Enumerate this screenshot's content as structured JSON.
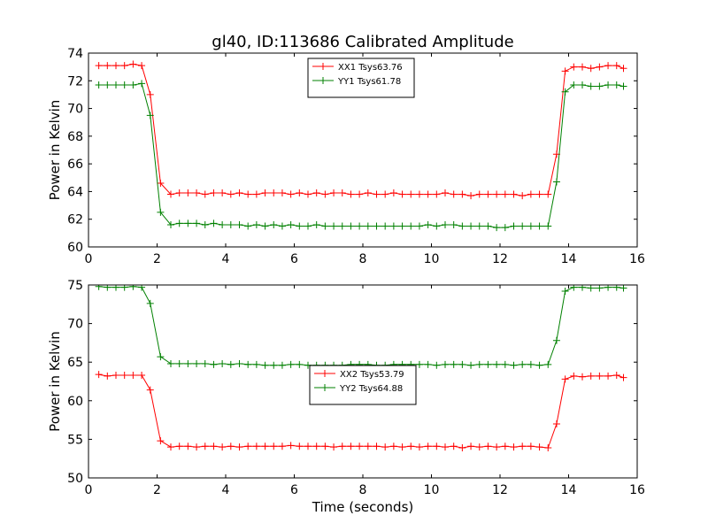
{
  "figure": {
    "title": "gl40, ID:113686 Calibrated Amplitude",
    "xlabel": "Time (seconds)"
  },
  "chart_data": [
    {
      "type": "line",
      "title": "gl40, ID:113686 Calibrated Amplitude",
      "xlabel": "",
      "ylabel": "Power in Kelvin",
      "xlim": [
        0,
        16
      ],
      "ylim": [
        60,
        74
      ],
      "xticks": [
        0,
        2,
        4,
        6,
        8,
        10,
        12,
        14,
        16
      ],
      "yticks": [
        60,
        62,
        64,
        66,
        68,
        70,
        72,
        74
      ],
      "grid": false,
      "legend_position": "top-center",
      "x": [
        0.3,
        0.55,
        0.8,
        1.05,
        1.3,
        1.55,
        1.8,
        2.1,
        2.4,
        2.65,
        2.9,
        3.15,
        3.4,
        3.65,
        3.9,
        4.15,
        4.4,
        4.65,
        4.9,
        5.15,
        5.4,
        5.65,
        5.9,
        6.15,
        6.4,
        6.65,
        6.9,
        7.15,
        7.4,
        7.65,
        7.9,
        8.15,
        8.4,
        8.65,
        8.9,
        9.15,
        9.4,
        9.65,
        9.9,
        10.15,
        10.4,
        10.65,
        10.9,
        11.15,
        11.4,
        11.65,
        11.9,
        12.15,
        12.4,
        12.65,
        12.9,
        13.15,
        13.4,
        13.65,
        13.9,
        14.15,
        14.4,
        14.65,
        14.9,
        15.15,
        15.4,
        15.6
      ],
      "series": [
        {
          "name": "XX1 Tsys63.76",
          "color": "#ff0000",
          "values": [
            73.1,
            73.1,
            73.1,
            73.1,
            73.2,
            73.1,
            71.0,
            64.6,
            63.8,
            63.9,
            63.9,
            63.9,
            63.8,
            63.9,
            63.9,
            63.8,
            63.9,
            63.8,
            63.8,
            63.9,
            63.9,
            63.9,
            63.8,
            63.9,
            63.8,
            63.9,
            63.8,
            63.9,
            63.9,
            63.8,
            63.8,
            63.9,
            63.8,
            63.8,
            63.9,
            63.8,
            63.8,
            63.8,
            63.8,
            63.8,
            63.9,
            63.8,
            63.8,
            63.7,
            63.8,
            63.8,
            63.8,
            63.8,
            63.8,
            63.7,
            63.8,
            63.8,
            63.8,
            66.7,
            72.7,
            73.0,
            73.0,
            72.9,
            73.0,
            73.1,
            73.1,
            72.9
          ]
        },
        {
          "name": "YY1 Tsys61.78",
          "color": "#008000",
          "values": [
            71.7,
            71.7,
            71.7,
            71.7,
            71.7,
            71.8,
            69.5,
            62.5,
            61.6,
            61.7,
            61.7,
            61.7,
            61.6,
            61.7,
            61.6,
            61.6,
            61.6,
            61.5,
            61.6,
            61.5,
            61.6,
            61.5,
            61.6,
            61.5,
            61.5,
            61.6,
            61.5,
            61.5,
            61.5,
            61.5,
            61.5,
            61.5,
            61.5,
            61.5,
            61.5,
            61.5,
            61.5,
            61.5,
            61.6,
            61.5,
            61.6,
            61.6,
            61.5,
            61.5,
            61.5,
            61.5,
            61.4,
            61.4,
            61.5,
            61.5,
            61.5,
            61.5,
            61.5,
            64.7,
            71.2,
            71.7,
            71.7,
            71.6,
            71.6,
            71.7,
            71.7,
            71.6
          ]
        }
      ]
    },
    {
      "type": "line",
      "title": "",
      "xlabel": "Time (seconds)",
      "ylabel": "Power in Kelvin",
      "xlim": [
        0,
        16
      ],
      "ylim": [
        50,
        75
      ],
      "xticks": [
        0,
        2,
        4,
        6,
        8,
        10,
        12,
        14,
        16
      ],
      "yticks": [
        50,
        55,
        60,
        65,
        70,
        75
      ],
      "grid": false,
      "legend_position": "center",
      "x": [
        0.3,
        0.55,
        0.8,
        1.05,
        1.3,
        1.55,
        1.8,
        2.1,
        2.4,
        2.65,
        2.9,
        3.15,
        3.4,
        3.65,
        3.9,
        4.15,
        4.4,
        4.65,
        4.9,
        5.15,
        5.4,
        5.65,
        5.9,
        6.15,
        6.4,
        6.65,
        6.9,
        7.15,
        7.4,
        7.65,
        7.9,
        8.15,
        8.4,
        8.65,
        8.9,
        9.15,
        9.4,
        9.65,
        9.9,
        10.15,
        10.4,
        10.65,
        10.9,
        11.15,
        11.4,
        11.65,
        11.9,
        12.15,
        12.4,
        12.65,
        12.9,
        13.15,
        13.4,
        13.65,
        13.9,
        14.15,
        14.4,
        14.65,
        14.9,
        15.15,
        15.4,
        15.6
      ],
      "series": [
        {
          "name": "XX2 Tsys53.79",
          "color": "#ff0000",
          "values": [
            63.4,
            63.2,
            63.3,
            63.3,
            63.3,
            63.3,
            61.4,
            54.8,
            54.0,
            54.1,
            54.1,
            54.0,
            54.1,
            54.1,
            54.0,
            54.1,
            54.0,
            54.1,
            54.1,
            54.1,
            54.1,
            54.1,
            54.2,
            54.1,
            54.1,
            54.1,
            54.1,
            54.0,
            54.1,
            54.1,
            54.1,
            54.1,
            54.1,
            54.0,
            54.1,
            54.0,
            54.1,
            54.0,
            54.1,
            54.1,
            54.0,
            54.1,
            53.9,
            54.1,
            54.0,
            54.1,
            54.0,
            54.1,
            54.0,
            54.1,
            54.1,
            54.0,
            53.9,
            57.0,
            62.8,
            63.2,
            63.1,
            63.2,
            63.2,
            63.2,
            63.3,
            63.0
          ]
        },
        {
          "name": "YY2 Tsys64.88",
          "color": "#008000",
          "values": [
            74.8,
            74.7,
            74.7,
            74.7,
            74.8,
            74.7,
            72.6,
            65.7,
            64.8,
            64.8,
            64.8,
            64.8,
            64.8,
            64.7,
            64.8,
            64.7,
            64.8,
            64.7,
            64.7,
            64.6,
            64.6,
            64.6,
            64.7,
            64.7,
            64.6,
            64.6,
            64.6,
            64.6,
            64.6,
            64.7,
            64.7,
            64.7,
            64.6,
            64.6,
            64.7,
            64.7,
            64.7,
            64.7,
            64.7,
            64.6,
            64.7,
            64.7,
            64.7,
            64.6,
            64.7,
            64.7,
            64.7,
            64.7,
            64.6,
            64.7,
            64.7,
            64.6,
            64.7,
            67.8,
            74.2,
            74.7,
            74.7,
            74.6,
            74.6,
            74.7,
            74.7,
            74.6
          ]
        }
      ]
    }
  ]
}
